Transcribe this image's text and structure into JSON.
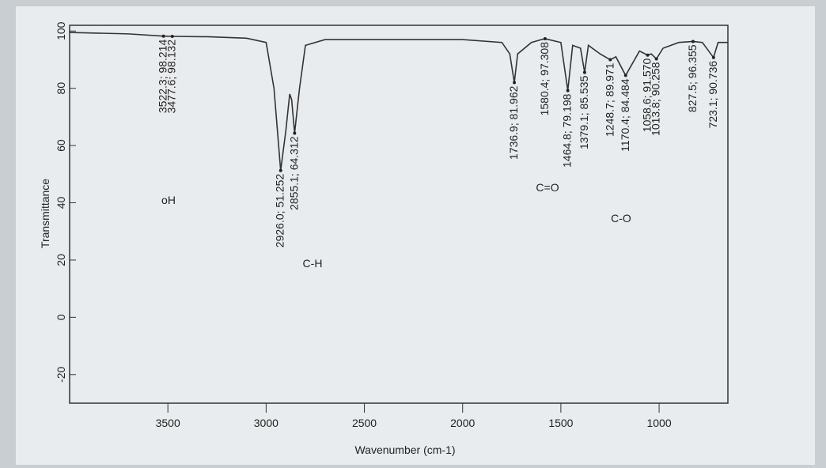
{
  "chart_data": {
    "type": "line",
    "x_label": "Wavenumber (cm-1)",
    "y_label": "Transmittance",
    "x": [
      4000,
      3700,
      3522.3,
      3477.6,
      3300,
      3100,
      3000,
      2960,
      2926.0,
      2900,
      2880,
      2870,
      2855.1,
      2830,
      2800,
      2700,
      2500,
      2000,
      1800,
      1760,
      1736.9,
      1720,
      1650,
      1600,
      1580.4,
      1500,
      1464.8,
      1440,
      1400,
      1379.1,
      1360,
      1300,
      1248.7,
      1220,
      1170.4,
      1100,
      1058.6,
      1040,
      1013.8,
      980,
      900,
      827.5,
      780,
      723.1,
      700,
      650
    ],
    "series": [
      {
        "color": "#333333",
        "values": [
          99.5,
          99,
          98.214,
          98.132,
          98,
          97.5,
          96,
          80,
          51.252,
          65,
          78,
          76,
          64.312,
          80,
          95,
          97,
          97,
          97,
          96,
          92,
          81.962,
          92,
          96,
          97,
          97.308,
          96,
          79.198,
          95,
          94,
          85.535,
          95,
          92,
          89.971,
          91,
          84.484,
          93,
          91.57,
          92,
          90.258,
          94,
          96,
          96.355,
          96,
          90.736,
          96,
          96
        ]
      }
    ],
    "peaks": {
      "x": [
        3522.3,
        3477.6,
        2926.0,
        2855.1,
        1736.9,
        1580.4,
        1464.8,
        1379.1,
        1248.7,
        1170.4,
        1058.6,
        1013.8,
        827.5,
        723.1
      ],
      "values": [
        98.214,
        98.132,
        51.252,
        64.312,
        81.962,
        97.308,
        79.198,
        85.535,
        89.971,
        84.484,
        91.57,
        90.258,
        96.355,
        90.736
      ],
      "value_labels": [
        "3522.3; 98.214",
        "3477.6; 98.132",
        "2926.0; 51.252",
        "2855.1; 64.312",
        "1736.9; 81.962",
        "1580.4; 97.308",
        "1464.8; 79.198",
        "1379.1; 85.535",
        "1248.7; 89.971",
        "1170.4; 84.484",
        "1058.6; 91.570",
        "1013.8; 90.258",
        "827.5; 96.355",
        "723.1; 90.736"
      ]
    },
    "annotations": [
      "oH",
      "C-H",
      "C=O",
      "C-O"
    ],
    "xlim": [
      4000,
      650
    ],
    "xticks": [
      3500,
      3000,
      2500,
      2000,
      1500,
      1000
    ],
    "ylim": [
      -30,
      102
    ],
    "yticks": [
      100,
      80,
      60,
      40,
      20,
      0,
      -20
    ]
  }
}
